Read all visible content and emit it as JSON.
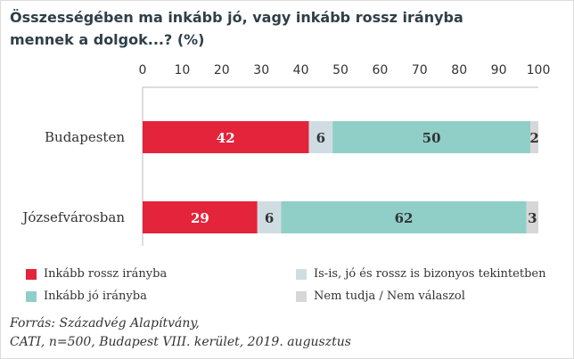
{
  "title_lines": [
    "Összességében ma inkább jó, vagy inkább rossz irányba",
    "mennek a dolgok...? (%)"
  ],
  "chart_data": {
    "type": "bar",
    "orientation": "horizontal",
    "stacked": true,
    "categories": [
      "Budapesten",
      "Józsefvárosban"
    ],
    "series": [
      {
        "name": "Inkább rossz irányba",
        "values": [
          42,
          29
        ],
        "color": "#e3243b",
        "label_color": "#ffffff"
      },
      {
        "name": "Is-is, jó és rossz is bizonyos tekintetben",
        "values": [
          6,
          6
        ],
        "color": "#cfdde3",
        "label_color": "#333333"
      },
      {
        "name": "Inkább jó irányba",
        "values": [
          50,
          62
        ],
        "color": "#8fcfc8",
        "label_color": "#333333"
      },
      {
        "name": "Nem tudja / Nem válaszol",
        "values": [
          2,
          3
        ],
        "color": "#d7d7d7",
        "label_color": "#333333"
      }
    ],
    "xlim": [
      0,
      100
    ],
    "xticks": [
      0,
      10,
      20,
      30,
      40,
      50,
      60,
      70,
      80,
      90,
      100
    ],
    "x_axis_position": "top",
    "grid": false,
    "legend_position": "bottom"
  },
  "legend": [
    "Inkább rossz irányba",
    "Is-is, jó és rossz is bizonyos tekintetben",
    "Inkább jó irányba",
    "Nem tudja / Nem válaszol"
  ],
  "source_lines": [
    "Forrás: Századvég Alapítvány,",
    "CATI, n=500, Budapest VIII. kerület, 2019. augusztus"
  ]
}
